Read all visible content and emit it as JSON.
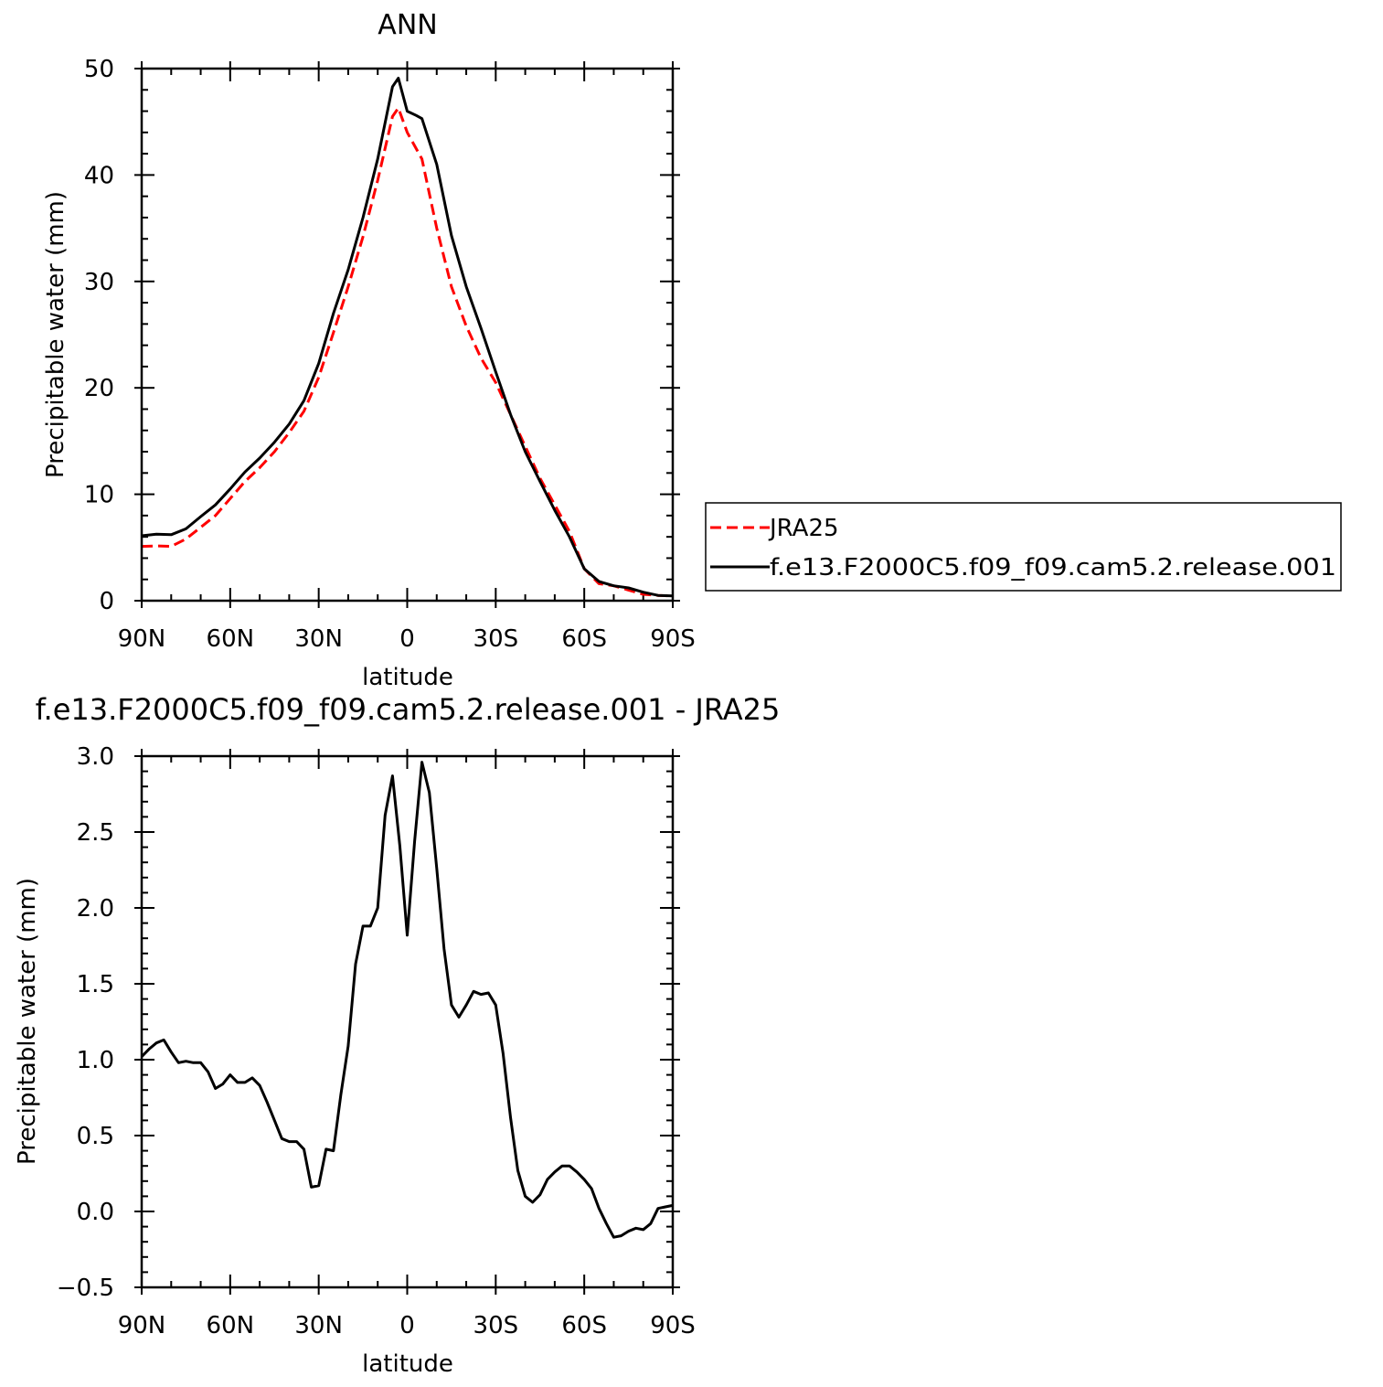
{
  "chart_data": [
    {
      "type": "line",
      "title": "ANN",
      "xlabel": "latitude",
      "ylabel": "Precipitable water (mm)",
      "xlim": [
        90,
        -90
      ],
      "ylim": [
        0,
        50
      ],
      "x_ticks": [
        {
          "value": 90,
          "label": "90N"
        },
        {
          "value": 60,
          "label": "60N"
        },
        {
          "value": 30,
          "label": "30N"
        },
        {
          "value": 0,
          "label": "0"
        },
        {
          "value": -30,
          "label": "30S"
        },
        {
          "value": -60,
          "label": "60S"
        },
        {
          "value": -90,
          "label": "90S"
        }
      ],
      "y_ticks": [
        {
          "value": 0,
          "label": "0"
        },
        {
          "value": 10,
          "label": "10"
        },
        {
          "value": 20,
          "label": "20"
        },
        {
          "value": 30,
          "label": "30"
        },
        {
          "value": 40,
          "label": "40"
        },
        {
          "value": 50,
          "label": "50"
        }
      ],
      "legend": {
        "position": "right"
      },
      "series": [
        {
          "name": "JRA25",
          "color": "#ff0000",
          "dash": "dashed",
          "x": [
            90,
            85,
            80,
            75,
            70,
            65,
            60,
            55,
            50,
            45,
            40,
            35,
            30,
            25,
            20,
            15,
            10,
            5,
            3,
            0,
            -5,
            -10,
            -15,
            -20,
            -25,
            -30,
            -35,
            -40,
            -45,
            -50,
            -55,
            -60,
            -65,
            -70,
            -75,
            -80,
            -85,
            -90
          ],
          "y": [
            5.1,
            5.15,
            5.1,
            5.8,
            6.9,
            8.0,
            9.6,
            11.2,
            12.5,
            14.0,
            15.8,
            17.8,
            21.0,
            25.2,
            29.5,
            34.2,
            39.5,
            45.5,
            46.3,
            44.0,
            41.5,
            35.0,
            29.5,
            25.8,
            22.8,
            20.5,
            17.5,
            14.5,
            11.5,
            9.0,
            6.5,
            3.0,
            1.6,
            1.4,
            1.0,
            0.6,
            0.5,
            0.45
          ]
        },
        {
          "name": "f.e13.F2000C5.f09_f09.cam5.2.release.001",
          "color": "#000000",
          "dash": "solid",
          "x": [
            90,
            85,
            80,
            75,
            70,
            65,
            60,
            55,
            50,
            45,
            40,
            35,
            30,
            25,
            20,
            15,
            10,
            5,
            3,
            0,
            -3,
            -5,
            -10,
            -15,
            -20,
            -25,
            -30,
            -35,
            -40,
            -45,
            -50,
            -55,
            -60,
            -65,
            -70,
            -75,
            -80,
            -85,
            -90
          ],
          "y": [
            6.1,
            6.25,
            6.2,
            6.75,
            7.9,
            9.0,
            10.5,
            12.1,
            13.4,
            14.9,
            16.6,
            18.8,
            22.3,
            27.0,
            31.1,
            36.0,
            41.5,
            48.3,
            49.1,
            46.0,
            45.6,
            45.3,
            41.0,
            34.3,
            29.5,
            25.6,
            21.5,
            17.5,
            14.0,
            11.2,
            8.5,
            6.0,
            3.0,
            1.8,
            1.4,
            1.2,
            0.8,
            0.5,
            0.45
          ]
        }
      ]
    },
    {
      "type": "line",
      "title": "f.e13.F2000C5.f09_f09.cam5.2.release.001 - JRA25",
      "xlabel": "latitude",
      "ylabel": "Precipitable water (mm)",
      "xlim": [
        90,
        -90
      ],
      "ylim": [
        -0.5,
        3.0
      ],
      "x_ticks": [
        {
          "value": 90,
          "label": "90N"
        },
        {
          "value": 60,
          "label": "60N"
        },
        {
          "value": 30,
          "label": "30N"
        },
        {
          "value": 0,
          "label": "0"
        },
        {
          "value": -30,
          "label": "30S"
        },
        {
          "value": -60,
          "label": "60S"
        },
        {
          "value": -90,
          "label": "90S"
        }
      ],
      "y_ticks": [
        {
          "value": -0.5,
          "label": "−0.5"
        },
        {
          "value": 0.0,
          "label": "0.0"
        },
        {
          "value": 0.5,
          "label": "0.5"
        },
        {
          "value": 1.0,
          "label": "1.0"
        },
        {
          "value": 1.5,
          "label": "1.5"
        },
        {
          "value": 2.0,
          "label": "2.0"
        },
        {
          "value": 2.5,
          "label": "2.5"
        },
        {
          "value": 3.0,
          "label": "3.0"
        }
      ],
      "series": [
        {
          "color": "#000000",
          "dash": "solid",
          "x": [
            90,
            87.5,
            85,
            82.5,
            80,
            77.5,
            75,
            72.5,
            70,
            67.5,
            65,
            62.5,
            60,
            57.5,
            55,
            52.5,
            50,
            47.5,
            45,
            42.5,
            40,
            37.5,
            35,
            32.5,
            30,
            27.5,
            25,
            22.5,
            20,
            17.5,
            15,
            12.5,
            10,
            7.5,
            5,
            2.5,
            0,
            -2.5,
            -5,
            -7.5,
            -10,
            -12.5,
            -15,
            -17.5,
            -20,
            -22.5,
            -25,
            -27.5,
            -30,
            -32.5,
            -35,
            -37.5,
            -40,
            -42.5,
            -45,
            -47.5,
            -50,
            -52.5,
            -55,
            -57.5,
            -60,
            -62.5,
            -65,
            -67.5,
            -70,
            -72.5,
            -75,
            -77.5,
            -80,
            -82.5,
            -85,
            -87.5,
            -90
          ],
          "y": [
            1.02,
            1.07,
            1.11,
            1.13,
            1.05,
            0.98,
            0.99,
            0.98,
            0.98,
            0.92,
            0.81,
            0.84,
            0.9,
            0.85,
            0.85,
            0.88,
            0.83,
            0.72,
            0.6,
            0.48,
            0.46,
            0.46,
            0.41,
            0.16,
            0.17,
            0.41,
            0.4,
            0.77,
            1.09,
            1.63,
            1.88,
            1.88,
            2.0,
            2.61,
            2.87,
            2.41,
            1.82,
            2.44,
            2.96,
            2.76,
            2.26,
            1.73,
            1.36,
            1.28,
            1.36,
            1.45,
            1.43,
            1.44,
            1.36,
            1.04,
            0.62,
            0.27,
            0.1,
            0.06,
            0.11,
            0.21,
            0.26,
            0.3,
            0.3,
            0.26,
            0.21,
            0.15,
            0.02,
            -0.08,
            -0.17,
            -0.16,
            -0.13,
            -0.11,
            -0.12,
            -0.08,
            0.02,
            0.03,
            0.04
          ]
        }
      ]
    }
  ]
}
